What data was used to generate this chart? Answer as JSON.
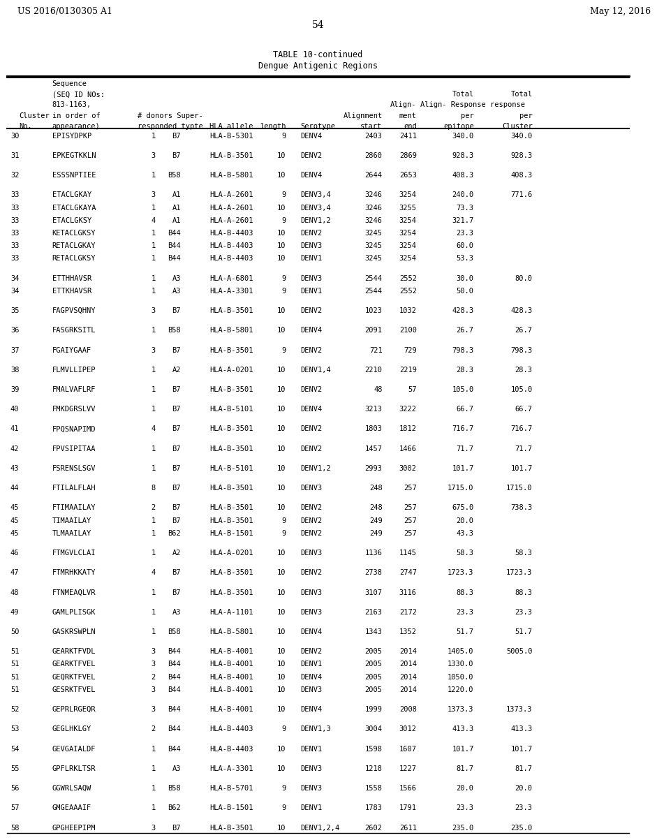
{
  "header_left": "US 2016/0130305 A1",
  "header_right": "May 12, 2016",
  "page_number": "54",
  "table_title": "TABLE 10-continued",
  "table_subtitle": "Dengue Antigenic Regions",
  "col_headers": [
    "Cluster\nNo.",
    "Sequence\n(SEQ ID NOs:\n813-1163,\nin order of\nappearance)",
    "# donors\nresponded",
    "Super-\ntypte",
    "HLA allele",
    "length",
    "Serotype",
    "Alignment\nstart",
    "Align-\nment\nend",
    "Total\nResponse\nper\nepitope",
    "Total\nresponse\nper\nCluster"
  ],
  "rows": [
    [
      "30",
      "EPISYDPKP",
      "1",
      "B7",
      "HLA-B-5301",
      "9",
      "DENV4",
      "2403",
      "2411",
      "340.0",
      "340.0"
    ],
    [
      "31",
      "EPKEGTKKLN",
      "3",
      "B7",
      "HLA-B-3501",
      "10",
      "DENV2",
      "2860",
      "2869",
      "928.3",
      "928.3"
    ],
    [
      "32",
      "ESSSNPTIEE",
      "1",
      "B58",
      "HLA-B-5801",
      "10",
      "DENV4",
      "2644",
      "2653",
      "408.3",
      "408.3"
    ],
    [
      "33",
      "ETACLGKAY",
      "3",
      "A1",
      "HLA-A-2601",
      "9",
      "DENV3,4",
      "3246",
      "3254",
      "240.0",
      "771.6"
    ],
    [
      "33",
      "ETACLGKAYA",
      "1",
      "A1",
      "HLA-A-2601",
      "10",
      "DENV3,4",
      "3246",
      "3255",
      "73.3",
      ""
    ],
    [
      "33",
      "ETACLGKSY",
      "4",
      "A1",
      "HLA-A-2601",
      "9",
      "DENV1,2",
      "3246",
      "3254",
      "321.7",
      ""
    ],
    [
      "33",
      "KETACLGKSY",
      "1",
      "B44",
      "HLA-B-4403",
      "10",
      "DENV2",
      "3245",
      "3254",
      "23.3",
      ""
    ],
    [
      "33",
      "RETACLGKAY",
      "1",
      "B44",
      "HLA-B-4403",
      "10",
      "DENV3",
      "3245",
      "3254",
      "60.0",
      ""
    ],
    [
      "33",
      "RETACLGKSY",
      "1",
      "B44",
      "HLA-B-4403",
      "10",
      "DENV1",
      "3245",
      "3254",
      "53.3",
      ""
    ],
    [
      "34",
      "ETTHHAVSR",
      "1",
      "A3",
      "HLA-A-6801",
      "9",
      "DENV3",
      "2544",
      "2552",
      "30.0",
      "80.0"
    ],
    [
      "34",
      "ETTKHAVSR",
      "1",
      "A3",
      "HLA-A-3301",
      "9",
      "DENV1",
      "2544",
      "2552",
      "50.0",
      ""
    ],
    [
      "35",
      "FAGPVSQHNY",
      "3",
      "B7",
      "HLA-B-3501",
      "10",
      "DENV2",
      "1023",
      "1032",
      "428.3",
      "428.3"
    ],
    [
      "36",
      "FASGRKSITL",
      "1",
      "B58",
      "HLA-B-5801",
      "10",
      "DENV4",
      "2091",
      "2100",
      "26.7",
      "26.7"
    ],
    [
      "37",
      "FGAIYGAAF",
      "3",
      "B7",
      "HLA-B-3501",
      "9",
      "DENV2",
      "721",
      "729",
      "798.3",
      "798.3"
    ],
    [
      "38",
      "FLMVLLIPEP",
      "1",
      "A2",
      "HLA-A-0201",
      "10",
      "DENV1,4",
      "2210",
      "2219",
      "28.3",
      "28.3"
    ],
    [
      "39",
      "FMALVAFLRF",
      "1",
      "B7",
      "HLA-B-3501",
      "10",
      "DENV2",
      "48",
      "57",
      "105.0",
      "105.0"
    ],
    [
      "40",
      "FMKDGRSLVV",
      "1",
      "B7",
      "HLA-B-5101",
      "10",
      "DENV4",
      "3213",
      "3222",
      "66.7",
      "66.7"
    ],
    [
      "41",
      "FPQSNAPIMD",
      "4",
      "B7",
      "HLA-B-3501",
      "10",
      "DENV2",
      "1803",
      "1812",
      "716.7",
      "716.7"
    ],
    [
      "42",
      "FPVSIPITAA",
      "1",
      "B7",
      "HLA-B-3501",
      "10",
      "DENV2",
      "1457",
      "1466",
      "71.7",
      "71.7"
    ],
    [
      "43",
      "FSRENSLSGV",
      "1",
      "B7",
      "HLA-B-5101",
      "10",
      "DENV1,2",
      "2993",
      "3002",
      "101.7",
      "101.7"
    ],
    [
      "44",
      "FTILALFLAH",
      "8",
      "B7",
      "HLA-B-3501",
      "10",
      "DENV3",
      "248",
      "257",
      "1715.0",
      "1715.0"
    ],
    [
      "45",
      "FTIMAAILAY",
      "2",
      "B7",
      "HLA-B-3501",
      "10",
      "DENV2",
      "248",
      "257",
      "675.0",
      "738.3"
    ],
    [
      "45",
      "TIMAAILAY",
      "1",
      "B7",
      "HLA-B-3501",
      "9",
      "DENV2",
      "249",
      "257",
      "20.0",
      ""
    ],
    [
      "45",
      "TLMAAILAY",
      "1",
      "B62",
      "HLA-B-1501",
      "9",
      "DENV2",
      "249",
      "257",
      "43.3",
      ""
    ],
    [
      "46",
      "FTMGVLCLAI",
      "1",
      "A2",
      "HLA-A-0201",
      "10",
      "DENV3",
      "1136",
      "1145",
      "58.3",
      "58.3"
    ],
    [
      "47",
      "FTMRHKKATY",
      "4",
      "B7",
      "HLA-B-3501",
      "10",
      "DENV2",
      "2738",
      "2747",
      "1723.3",
      "1723.3"
    ],
    [
      "48",
      "FTNMEAQLVR",
      "1",
      "B7",
      "HLA-B-3501",
      "10",
      "DENV3",
      "3107",
      "3116",
      "88.3",
      "88.3"
    ],
    [
      "49",
      "GAMLPLISGK",
      "1",
      "A3",
      "HLA-A-1101",
      "10",
      "DENV3",
      "2163",
      "2172",
      "23.3",
      "23.3"
    ],
    [
      "50",
      "GASKRSWPLN",
      "1",
      "B58",
      "HLA-B-5801",
      "10",
      "DENV4",
      "1343",
      "1352",
      "51.7",
      "51.7"
    ],
    [
      "51",
      "GEARKTFVDL",
      "3",
      "B44",
      "HLA-B-4001",
      "10",
      "DENV2",
      "2005",
      "2014",
      "1405.0",
      "5005.0"
    ],
    [
      "51",
      "GEARKTFVEL",
      "3",
      "B44",
      "HLA-B-4001",
      "10",
      "DENV1",
      "2005",
      "2014",
      "1330.0",
      ""
    ],
    [
      "51",
      "GEQRKTFVEL",
      "2",
      "B44",
      "HLA-B-4001",
      "10",
      "DENV4",
      "2005",
      "2014",
      "1050.0",
      ""
    ],
    [
      "51",
      "GESRKTFVEL",
      "3",
      "B44",
      "HLA-B-4001",
      "10",
      "DENV3",
      "2005",
      "2014",
      "1220.0",
      ""
    ],
    [
      "52",
      "GEPRLRGEQR",
      "3",
      "B44",
      "HLA-B-4001",
      "10",
      "DENV4",
      "1999",
      "2008",
      "1373.3",
      "1373.3"
    ],
    [
      "53",
      "GEGLHKLGY",
      "2",
      "B44",
      "HLA-B-4403",
      "9",
      "DENV1,3",
      "3004",
      "3012",
      "413.3",
      "413.3"
    ],
    [
      "54",
      "GEVGAIALDF",
      "1",
      "B44",
      "HLA-B-4403",
      "10",
      "DENV1",
      "1598",
      "1607",
      "101.7",
      "101.7"
    ],
    [
      "55",
      "GPFLRKLTSR",
      "1",
      "A3",
      "HLA-A-3301",
      "10",
      "DENV3",
      "1218",
      "1227",
      "81.7",
      "81.7"
    ],
    [
      "56",
      "GGWRLSAQW",
      "1",
      "B58",
      "HLA-B-5701",
      "9",
      "DENV3",
      "1558",
      "1566",
      "20.0",
      "20.0"
    ],
    [
      "57",
      "GMGEAAAIF",
      "1",
      "B62",
      "HLA-B-1501",
      "9",
      "DENV1",
      "1783",
      "1791",
      "23.3",
      "23.3"
    ],
    [
      "58",
      "GPGHEEPIPM",
      "3",
      "B7",
      "HLA-B-3501",
      "10",
      "DENV1,2,4",
      "2602",
      "2611",
      "235.0",
      "235.0"
    ]
  ],
  "bg_color": "#ffffff",
  "text_color": "#000000",
  "font_size": 7.5,
  "mono_font": "DejaVu Sans Mono"
}
